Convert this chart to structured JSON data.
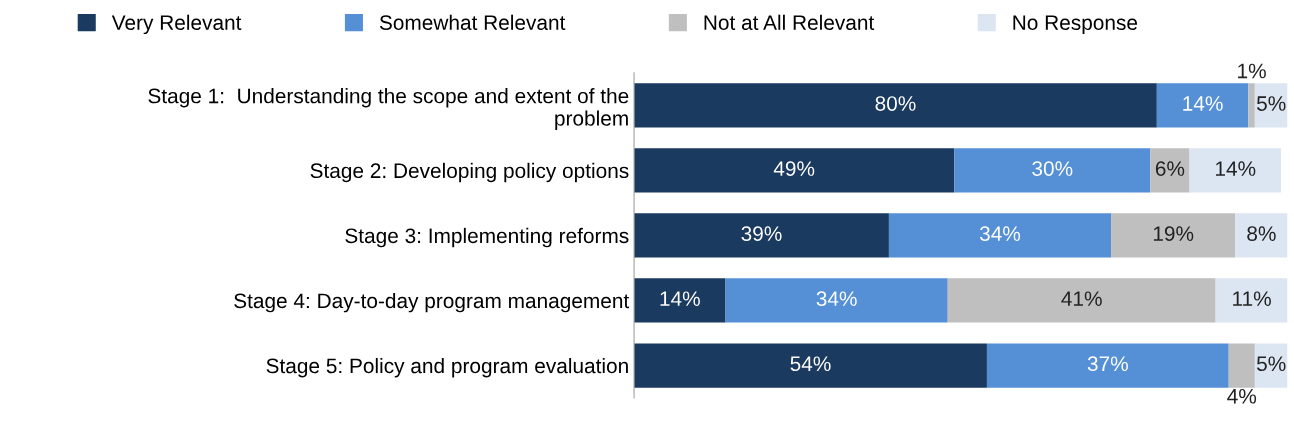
{
  "chart_data": {
    "type": "bar",
    "orientation": "horizontal",
    "stacked": true,
    "legend": "top",
    "tick_labels": "y",
    "categories": [
      "Stage 1:  Understanding the scope and extent of the\nproblem",
      "Stage 2: Developing policy options",
      "Stage 3: Implementing reforms",
      "Stage 4: Day-to-day program management",
      "Stage 5: Policy and program evaluation"
    ],
    "series": [
      {
        "name": "Very Relevant",
        "color": "#1b3a5f",
        "values": [
          80,
          49,
          39,
          14,
          54
        ],
        "value_labels": [
          "80%",
          "49%",
          "39%",
          "14%",
          "54%"
        ]
      },
      {
        "name": "Somewhat Relevant",
        "color": "#5590d6",
        "values": [
          14,
          30,
          34,
          34,
          37
        ],
        "value_labels": [
          "14%",
          "30%",
          "34%",
          "34%",
          "37%"
        ]
      },
      {
        "name": "Not at All Relevant",
        "color": "#bfbfbf",
        "values": [
          1,
          6,
          19,
          41,
          4
        ],
        "value_labels": [
          "1%",
          "6%",
          "19%",
          "41%",
          "4%"
        ]
      },
      {
        "name": "No Response",
        "color": "#dce6f2",
        "values": [
          5,
          14,
          8,
          11,
          5
        ],
        "value_labels": [
          "5%",
          "14%",
          "8%",
          "11%",
          "5%"
        ]
      }
    ]
  }
}
